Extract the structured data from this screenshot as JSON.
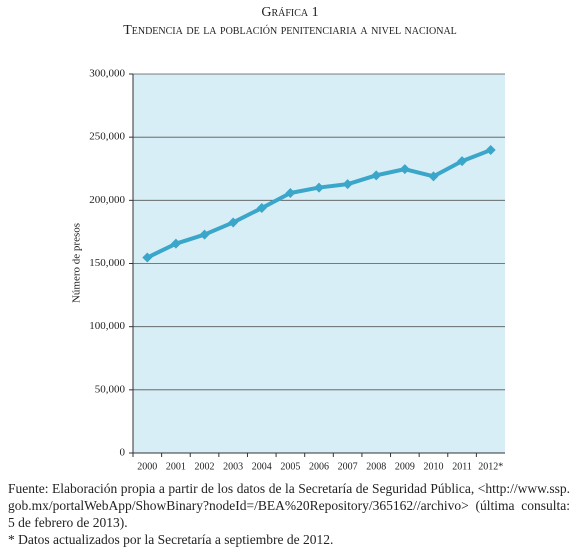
{
  "chart_data": {
    "type": "line",
    "title": "Gráfica 1",
    "subtitle": "Tendencia de la población penitenciaria a nivel nacional",
    "y_label": "Número de presos",
    "categories": [
      "2000",
      "2001",
      "2002",
      "2003",
      "2004",
      "2005",
      "2006",
      "2007",
      "2008",
      "2009",
      "2010",
      "2011",
      "2012*"
    ],
    "series": [
      {
        "color": "#3aa6c9",
        "values": [
          154700,
          165700,
          172900,
          182500,
          193900,
          205800,
          210100,
          212800,
          219800,
          224700,
          219000,
          231000,
          239800
        ]
      }
    ],
    "ylim": [
      0,
      300000
    ],
    "yticks": [
      0,
      {
        "value": 50000,
        "label": "50,000"
      },
      {
        "value": 100000,
        "label": "100,000"
      },
      {
        "value": 150000,
        "label": "150,000"
      },
      {
        "value": 200000,
        "label": "200,000"
      },
      {
        "value": 250000,
        "label": "250,000"
      },
      {
        "value": 300000,
        "label": "300,000"
      }
    ],
    "grid": true,
    "source": "Fuente: Elaboración propia a partir de los datos de la Secretaría de Seguridad Pública, <http://www.ssp.gob.mx/portalWebApp/ShowBinary?nodeId=/BEA%20Repository/365162//archivo> (última consulta: 5 de febrero de 2013).",
    "note": "* Datos actualizados por la Secretaría a septiembre de 2012."
  }
}
